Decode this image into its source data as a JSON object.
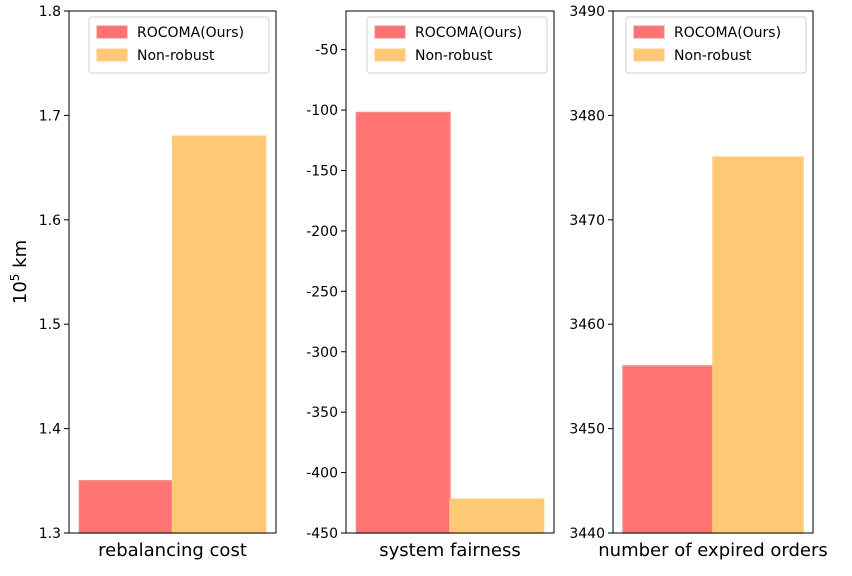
{
  "figure": {
    "ylabel_base": "10",
    "ylabel_exp": "5",
    "ylabel_unit": "km"
  },
  "colors": {
    "rocoma": "#ff7373",
    "nonrobust": "#ffc875",
    "rocoma_edge": "#f08a8a",
    "nonrobust_edge": "#ffcc80"
  },
  "chart_data": [
    {
      "type": "bar",
      "xlabel": "rebalancing cost",
      "ylim": [
        1.3,
        1.8
      ],
      "yticks": [
        "1.3",
        "1.4",
        "1.5",
        "1.6",
        "1.7",
        "1.8"
      ],
      "series": [
        {
          "name": "ROCOMA(Ours)",
          "values": [
            1.35
          ]
        },
        {
          "name": "Non-robust",
          "values": [
            1.68
          ]
        }
      ],
      "legend": [
        "ROCOMA(Ours)",
        "Non-robust"
      ],
      "legend_position": "top-right"
    },
    {
      "type": "bar",
      "xlabel": "system fairness",
      "ylim": [
        -450,
        -18
      ],
      "yticks": [
        "-450",
        "-400",
        "-350",
        "-300",
        "-250",
        "-200",
        "-150",
        "-100",
        "-50"
      ],
      "series": [
        {
          "name": "ROCOMA(Ours)",
          "values": [
            -102
          ]
        },
        {
          "name": "Non-robust",
          "values": [
            -422
          ]
        }
      ],
      "legend": [
        "ROCOMA(Ours)",
        "Non-robust"
      ],
      "legend_position": "top-right"
    },
    {
      "type": "bar",
      "xlabel": "number of expired orders",
      "ylim": [
        3440,
        3490
      ],
      "yticks": [
        "3440",
        "3450",
        "3460",
        "3470",
        "3480",
        "3490"
      ],
      "series": [
        {
          "name": "ROCOMA(Ours)",
          "values": [
            3456
          ]
        },
        {
          "name": "Non-robust",
          "values": [
            3476
          ]
        }
      ],
      "legend": [
        "ROCOMA(Ours)",
        "Non-robust"
      ],
      "legend_position": "top-right"
    }
  ]
}
